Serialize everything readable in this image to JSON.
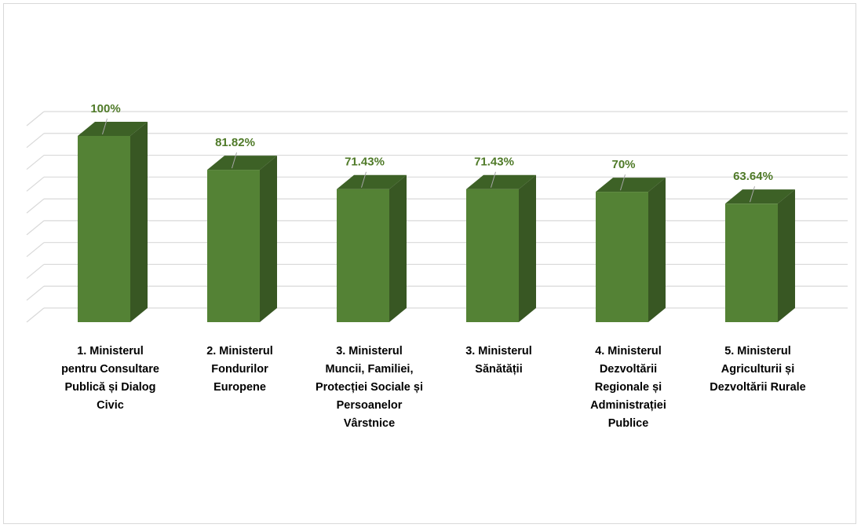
{
  "chart_data": {
    "type": "bar",
    "categories": [
      "1.  Ministerul\npentru Consultare\nPublică și Dialog\nCivic",
      "2.   Ministerul\nFondurilor\nEuropene",
      "3.    Ministerul\nMuncii, Familiei,\nProtecției Sociale și\nPersoanelor\nVârstnice",
      "3. Ministerul\nSănătății",
      "4.   Ministerul\nDezvoltării\nRegionale și\nAdministrației\nPublice",
      "5.   Ministerul\nAgriculturii și\nDezvoltării Rurale"
    ],
    "values": [
      100,
      81.82,
      71.43,
      71.43,
      70,
      63.64
    ],
    "data_labels": [
      "100%",
      "81.82%",
      "71.43%",
      "71.43%",
      "70%",
      "63.64%"
    ],
    "ylim": [
      0,
      100
    ],
    "grid": true,
    "legend": "none",
    "colors": {
      "front": "#548235",
      "side": "#385723",
      "top": "#3d6126",
      "label": "#4f7a28",
      "grid": "#d9d9d9"
    }
  }
}
